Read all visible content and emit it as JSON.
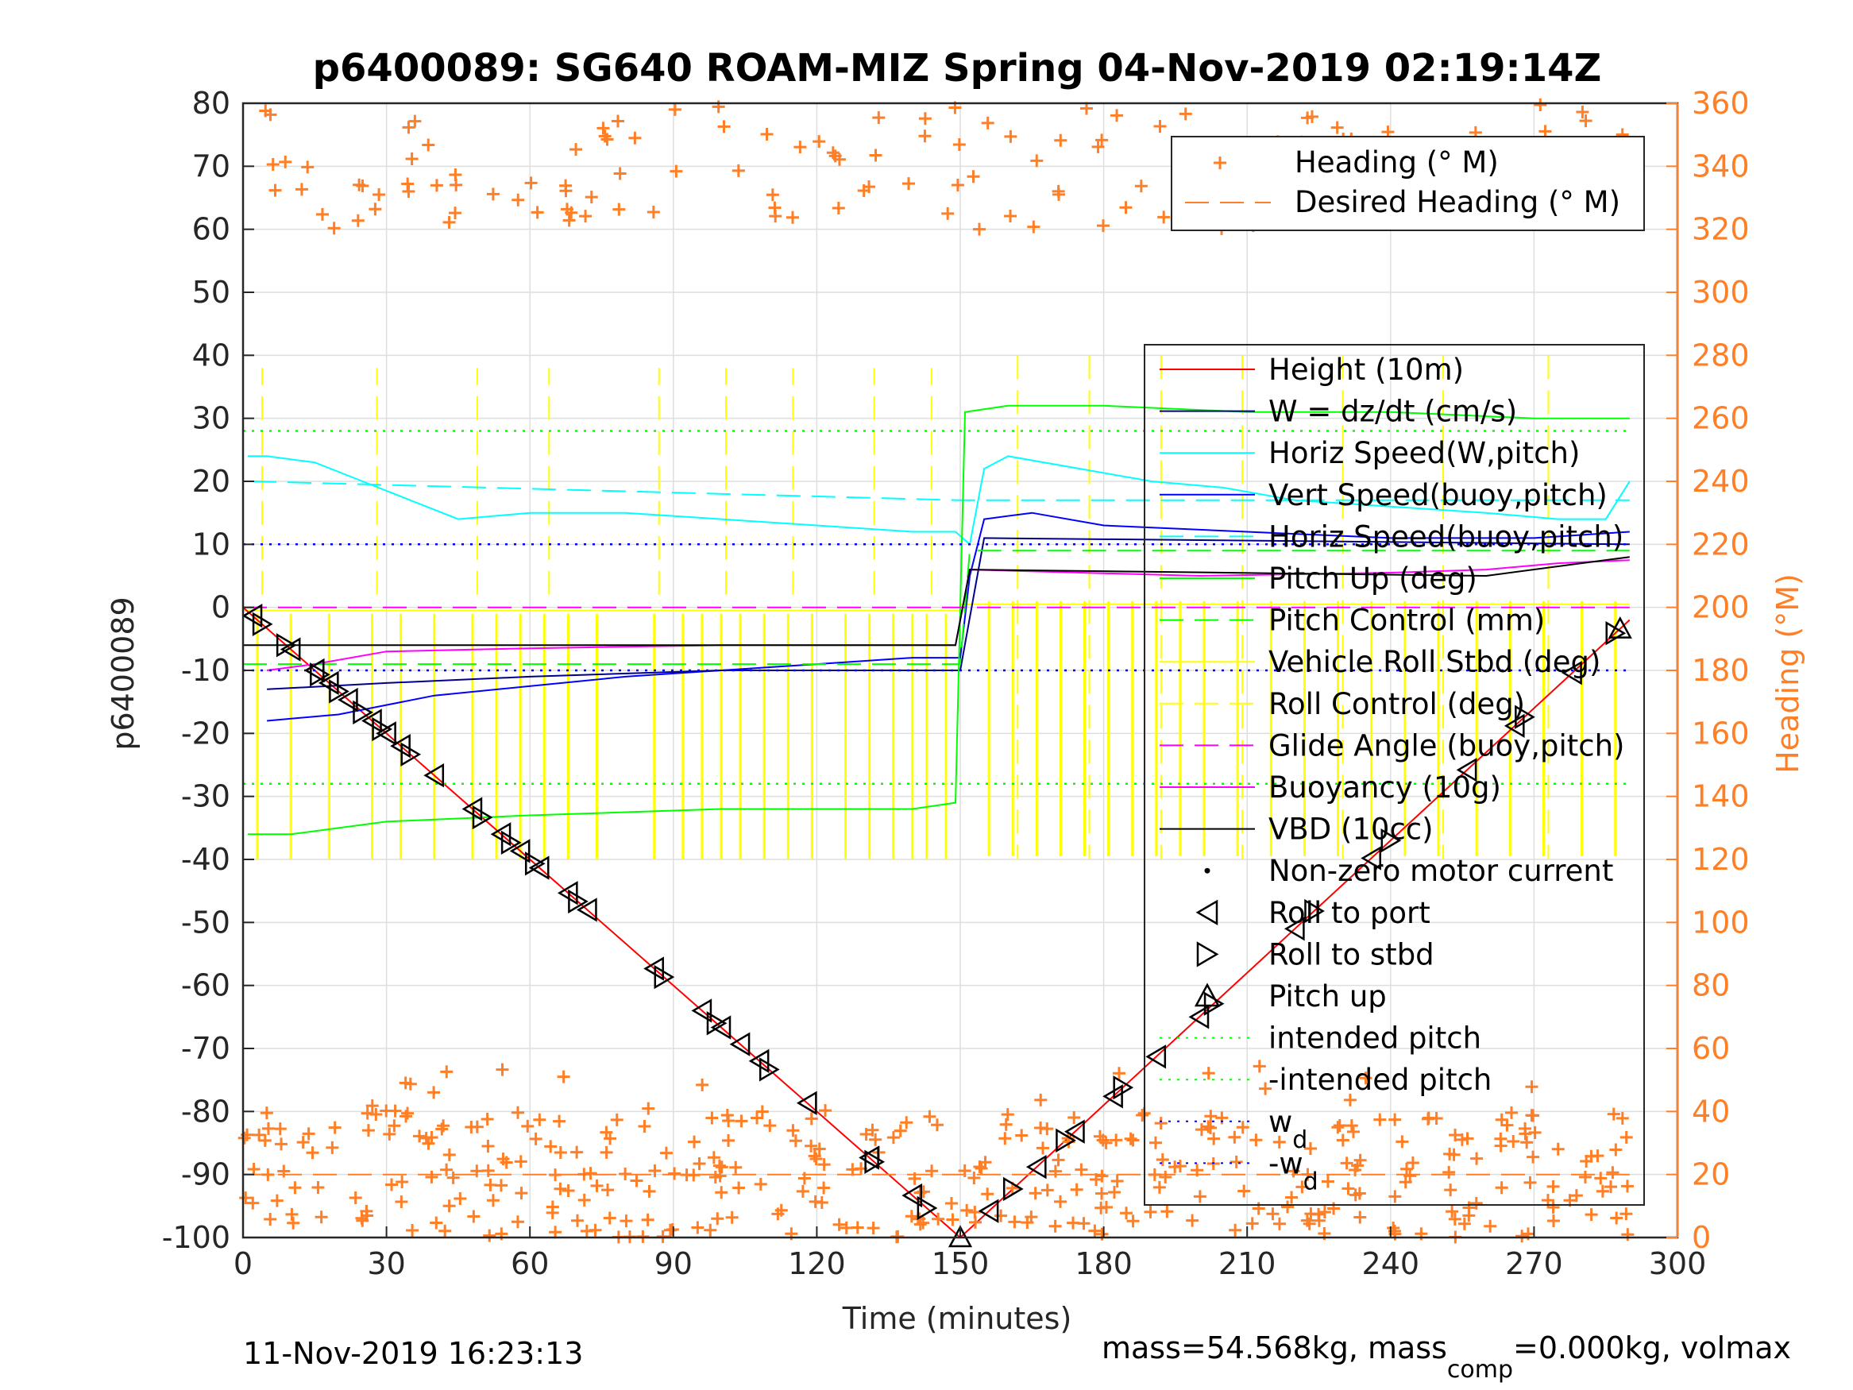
{
  "colors": {
    "heading": "#ff7f27",
    "height": "#ff0000",
    "w": "#00008b",
    "horiz_speed": "#00ffff",
    "vert_speed": "#0000ff",
    "pitch": "#00ff00",
    "roll": "#ffff00",
    "glide": "#ff00ff",
    "buoyancy": "#ff00ff",
    "vbd": "#000000",
    "intended_pitch": "#00ff00",
    "wd": "#0000ff"
  },
  "chart_data": {
    "type": "line",
    "title": "p6400089: SG640 ROAM-MIZ Spring 04-Nov-2019 02:19:14Z",
    "xlabel": "Time (minutes)",
    "ylabel": "p6400089",
    "ylabel_right": "Heading (°M)",
    "xlim": [
      0,
      300
    ],
    "ylim": [
      -100,
      80
    ],
    "ylim_right": [
      0,
      360
    ],
    "x_ticks": [
      "0",
      "30",
      "60",
      "90",
      "120",
      "150",
      "180",
      "210",
      "240",
      "270",
      "300"
    ],
    "y_ticks": [
      "-100",
      "-90",
      "-80",
      "-70",
      "-60",
      "-50",
      "-40",
      "-30",
      "-20",
      "-10",
      "0",
      "10",
      "20",
      "30",
      "40",
      "50",
      "60",
      "70",
      "80"
    ],
    "y_ticks_right": [
      "0",
      "20",
      "40",
      "60",
      "80",
      "100",
      "120",
      "140",
      "160",
      "180",
      "200",
      "220",
      "240",
      "260",
      "280",
      "300",
      "320",
      "340",
      "360"
    ],
    "grid": true,
    "legend_heading": {
      "placement": "top-right",
      "entries": [
        "Heading (° M)",
        "Desired Heading (° M)"
      ]
    },
    "legend_main": {
      "placement": "right",
      "entries": [
        "Height (10m)",
        "W = dz/dt (cm/s)",
        "Horiz Speed(W,pitch)",
        "Vert Speed(buoy,pitch)",
        "Horiz Speed(buoy,pitch)",
        "Pitch Up (deg)",
        "Pitch Control (mm)",
        "Vehicle Roll Stbd (deg)",
        "Roll Control (deg)",
        "Glide Angle (buoy,pitch)",
        "Buoyancy (10g)",
        "VBD (10cc)",
        "Non-zero motor current",
        "Roll to port",
        "Roll to stbd",
        "Pitch up",
        "intended pitch",
        "-intended pitch",
        "w",
        "-w"
      ],
      "subscript": "d"
    },
    "series": [
      {
        "name": "Height (10m)",
        "x": [
          0,
          150,
          290
        ],
        "values": [
          0,
          -100,
          -2
        ]
      },
      {
        "name": "Horiz Speed(W,pitch)",
        "x": [
          1,
          5,
          15,
          25,
          35,
          45,
          60,
          80,
          100,
          120,
          140,
          149,
          152,
          155,
          160,
          175,
          190,
          205,
          220,
          240,
          260,
          275,
          285,
          290
        ],
        "values": [
          24,
          24,
          23,
          20,
          17,
          14,
          15,
          15,
          14,
          13,
          12,
          12,
          10,
          22,
          24,
          22,
          20,
          19,
          17,
          16,
          15,
          14,
          14,
          20
        ]
      },
      {
        "name": "Horiz Speed(buoy,pitch)",
        "x": [
          2,
          150,
          152,
          290
        ],
        "values": [
          20,
          17,
          17,
          17
        ]
      },
      {
        "name": "Vert Speed(buoy,pitch)",
        "x": [
          5,
          20,
          40,
          80,
          120,
          140,
          150,
          152,
          155,
          165,
          180,
          210,
          240,
          270,
          290
        ],
        "values": [
          -18,
          -17,
          -14,
          -11,
          -9,
          -8,
          -8,
          5,
          14,
          15,
          13,
          12,
          11,
          11,
          12
        ]
      },
      {
        "name": "W = dz/dt (cm/s)",
        "x": [
          5,
          30,
          60,
          100,
          140,
          150,
          155,
          290
        ],
        "values": [
          -13,
          -12,
          -11,
          -10,
          -10,
          -10,
          11,
          10
        ]
      },
      {
        "name": "Pitch Up (deg)",
        "x": [
          1,
          10,
          30,
          60,
          100,
          140,
          149,
          151,
          160,
          180,
          210,
          240,
          270,
          290
        ],
        "values": [
          -36,
          -36,
          -34,
          -33,
          -32,
          -32,
          -31,
          31,
          32,
          32,
          31,
          31,
          30,
          30
        ]
      },
      {
        "name": "Pitch Control (mm)",
        "x": [
          0,
          150,
          152,
          290
        ],
        "values": [
          -9,
          -9,
          9,
          9
        ]
      },
      {
        "name": "Glide Angle (buoy,pitch)",
        "x": [
          0,
          150,
          151,
          290
        ],
        "values": [
          0,
          0,
          0,
          0
        ]
      },
      {
        "name": "Buoyancy (10g)",
        "x": [
          5,
          15,
          30,
          60,
          100,
          149,
          152,
          200,
          240,
          260,
          275,
          290
        ],
        "values": [
          -10,
          -9,
          -7,
          -6.5,
          -6,
          -6,
          6,
          5,
          5.5,
          6,
          7,
          7.5
        ]
      },
      {
        "name": "VBD (10cc)",
        "x": [
          0,
          149,
          152,
          260,
          290
        ],
        "values": [
          -6,
          -6,
          6,
          5,
          8
        ]
      },
      {
        "name": "intended pitch",
        "x": [
          0,
          290
        ],
        "values": [
          28,
          28
        ]
      },
      {
        "name": "-intended pitch",
        "x": [
          0,
          290
        ],
        "values": [
          -28,
          -28
        ]
      },
      {
        "name": "w",
        "x": [
          0,
          290
        ],
        "values": [
          10,
          10
        ]
      },
      {
        "name": "-w",
        "x": [
          0,
          290
        ],
        "values": [
          -10,
          -10
        ]
      },
      {
        "name": "Heading (° M)",
        "axis": "right",
        "description_points": "scattered plus markers near 0-60 and 300-360"
      },
      {
        "name": "Desired Heading (° M)",
        "axis": "right",
        "x": [
          0,
          290
        ],
        "values": [
          20,
          20
        ]
      }
    ],
    "markers": {
      "roll_to_port_x": [
        2,
        10,
        15,
        18,
        22,
        27,
        30,
        33,
        40,
        48,
        54,
        58,
        62,
        68,
        72,
        86,
        96,
        100,
        104,
        108,
        118,
        131,
        140,
        156,
        166,
        174,
        182,
        191,
        200,
        220,
        236,
        256,
        266,
        278
      ],
      "roll_to_stbd_x": [
        4,
        9,
        16,
        20,
        25,
        29,
        35,
        50,
        56,
        61,
        70,
        88,
        99,
        110,
        132,
        143,
        161,
        172,
        184,
        203,
        224,
        240,
        268,
        287
      ],
      "pitch_up_x": [
        150,
        288
      ]
    },
    "footer_left": "11-Nov-2019 16:23:13",
    "footer_right": "mass=54.568kg, mass",
    "footer_right_sub": "comp",
    "footer_right_tail": "=0.000kg, volmax"
  }
}
